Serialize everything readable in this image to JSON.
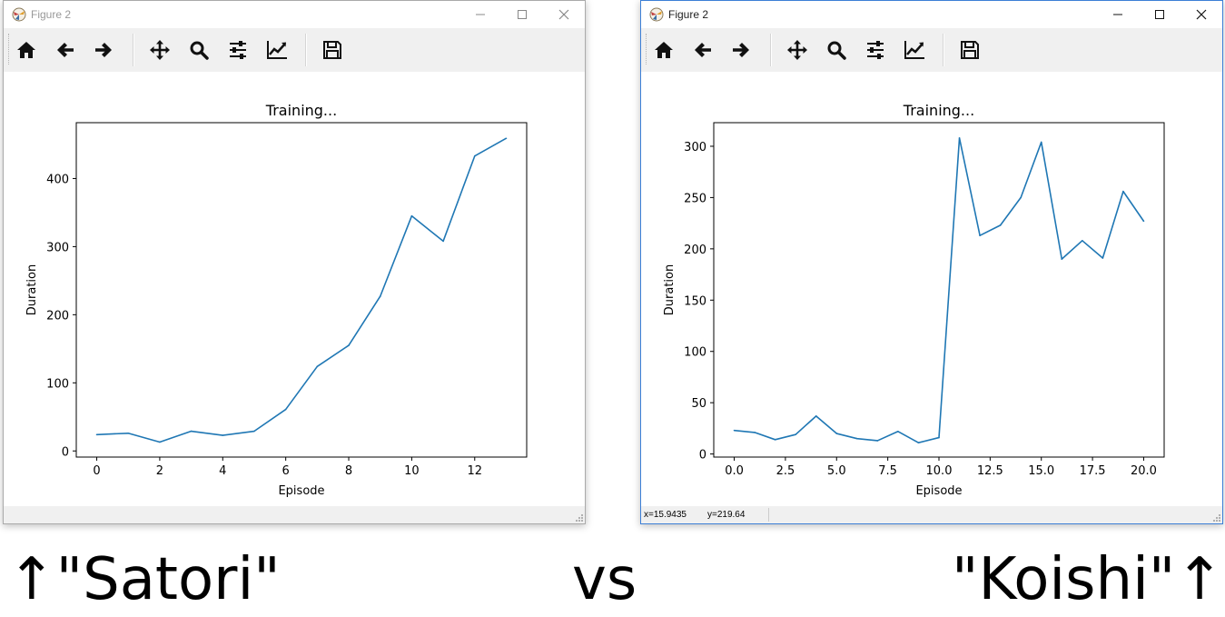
{
  "windows": [
    {
      "title": "Figure 2",
      "status": {
        "x": "",
        "y": ""
      },
      "chart_data": {
        "type": "line",
        "title": "Training...",
        "xlabel": "Episode",
        "ylabel": "Duration",
        "xlim": [
          -0.65,
          13.65
        ],
        "ylim": [
          -9,
          482
        ],
        "xticks": [
          0,
          2,
          4,
          6,
          8,
          10,
          12
        ],
        "xtick_labels": [
          "0",
          "2",
          "4",
          "6",
          "8",
          "10",
          "12"
        ],
        "yticks": [
          0,
          100,
          200,
          300,
          400
        ],
        "ytick_labels": [
          "0",
          "100",
          "200",
          "300",
          "400"
        ],
        "grid": false,
        "series": [
          {
            "color": "#1f77b4",
            "x": [
              0,
              1,
              2,
              3,
              4,
              5,
              6,
              7,
              8,
              9,
              10,
              11,
              12,
              13
            ],
            "y": [
              24,
              26,
              13,
              29,
              23,
              29,
              61,
              124,
              155,
              227,
              345,
              308,
              433,
              459
            ]
          }
        ]
      }
    },
    {
      "title": "Figure 2",
      "status": {
        "x": "x=15.9435",
        "y": "y=219.64"
      },
      "chart_data": {
        "type": "line",
        "title": "Training...",
        "xlabel": "Episode",
        "ylabel": "Duration",
        "xlim": [
          -1.0,
          21.0
        ],
        "ylim": [
          -3,
          323
        ],
        "xticks": [
          0,
          2.5,
          5,
          7.5,
          10,
          12.5,
          15,
          17.5,
          20
        ],
        "xtick_labels": [
          "0.0",
          "2.5",
          "5.0",
          "7.5",
          "10.0",
          "12.5",
          "15.0",
          "17.5",
          "20.0"
        ],
        "yticks": [
          0,
          50,
          100,
          150,
          200,
          250,
          300
        ],
        "ytick_labels": [
          "0",
          "50",
          "100",
          "150",
          "200",
          "250",
          "300"
        ],
        "grid": false,
        "series": [
          {
            "color": "#1f77b4",
            "x": [
              0,
              1,
              2,
              3,
              4,
              5,
              6,
              7,
              8,
              9,
              10,
              11,
              12,
              13,
              14,
              15,
              16,
              17,
              18,
              19,
              20
            ],
            "y": [
              23,
              21,
              14,
              19,
              37,
              20,
              15,
              13,
              22,
              11,
              16,
              308,
              213,
              223,
              250,
              304,
              190,
              208,
              191,
              256,
              227
            ]
          }
        ]
      }
    }
  ],
  "captions": {
    "left": "↑\"Satori\"",
    "middle": "vs",
    "right": "\"Koishi\"↑"
  },
  "icons": [
    "home-icon",
    "back-icon",
    "forward-icon",
    "pan-icon",
    "zoom-icon",
    "configure-subplots-icon",
    "edit-axis-icon",
    "save-icon"
  ]
}
